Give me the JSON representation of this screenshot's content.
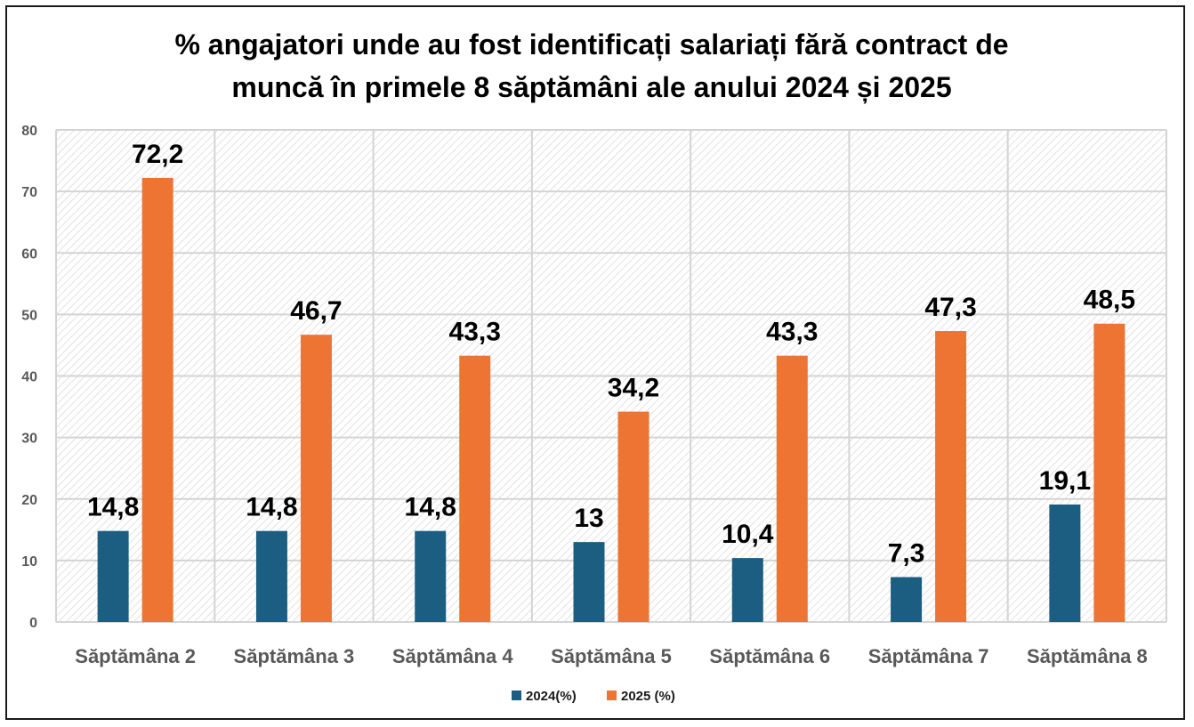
{
  "chart_data": {
    "type": "bar",
    "title": "% angajatori unde au fost identificați salariați fără contract de\nmuncă în primele 8 săptămâni ale anului 2024 și 2025",
    "categories": [
      "Săptămâna 2",
      "Săptămâna 3",
      "Săptămâna 4",
      "Săptămâna 5",
      "Săptămâna 6",
      "Săptămâna 7",
      "Săptămâna 8"
    ],
    "series": [
      {
        "name": "2024(%)",
        "color": "#1b5e82",
        "values": [
          14.8,
          14.8,
          14.8,
          13,
          10.4,
          7.3,
          19.1
        ],
        "labels": [
          "14,8",
          "14,8",
          "14,8",
          "13",
          "10,4",
          "7,3",
          "19,1"
        ]
      },
      {
        "name": "2025 (%)",
        "color": "#ed7432",
        "values": [
          72.2,
          46.7,
          43.3,
          34.2,
          43.3,
          47.3,
          48.5
        ],
        "labels": [
          "72,2",
          "46,7",
          "43,3",
          "34,2",
          "43,3",
          "47,3",
          "48,5"
        ]
      }
    ],
    "ylim": [
      0,
      80
    ],
    "yticks": [
      0,
      10,
      20,
      30,
      40,
      50,
      60,
      70,
      80
    ],
    "grid": true,
    "legend": "bottom-center"
  }
}
